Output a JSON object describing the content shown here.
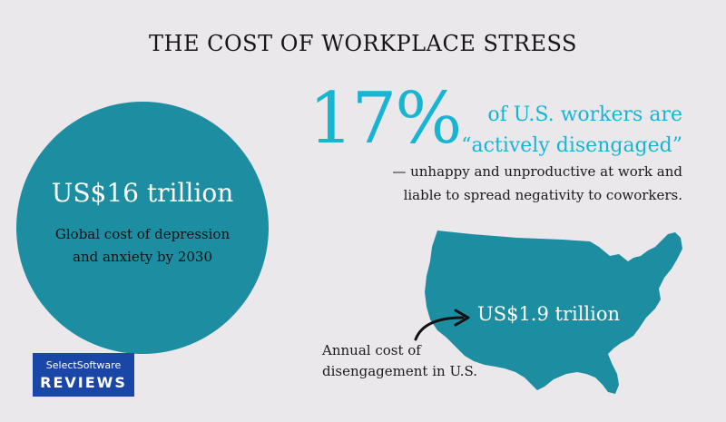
{
  "title": "THE COST OF WORKPLACE STRESS",
  "global_stat": {
    "value": "US$16 trillion",
    "caption_line1": "Global cost of depression",
    "caption_line2": "and anxiety by 2030"
  },
  "disengaged_stat": {
    "percent": "17%",
    "text_line1": "of U.S. workers are",
    "text_line2": "“actively disengaged”",
    "detail_line1": "— unhappy and unproductive at work and",
    "detail_line2": "liable to spread negativity to coworkers."
  },
  "us_stat": {
    "value": "US$1.9 trillion",
    "caption_line1": "Annual cost of",
    "caption_line2": "disengagement in U.S."
  },
  "logo": {
    "line1": "SelectSoftware",
    "line2": "REVIEWS"
  },
  "colors": {
    "background": "#ebe8ec",
    "teal": "#1d8ea2",
    "cyan": "#18b5d3",
    "logo_blue": "#1a46a8"
  },
  "icons": {
    "map": "usa-map-icon",
    "arrow": "curved-arrow-icon"
  }
}
